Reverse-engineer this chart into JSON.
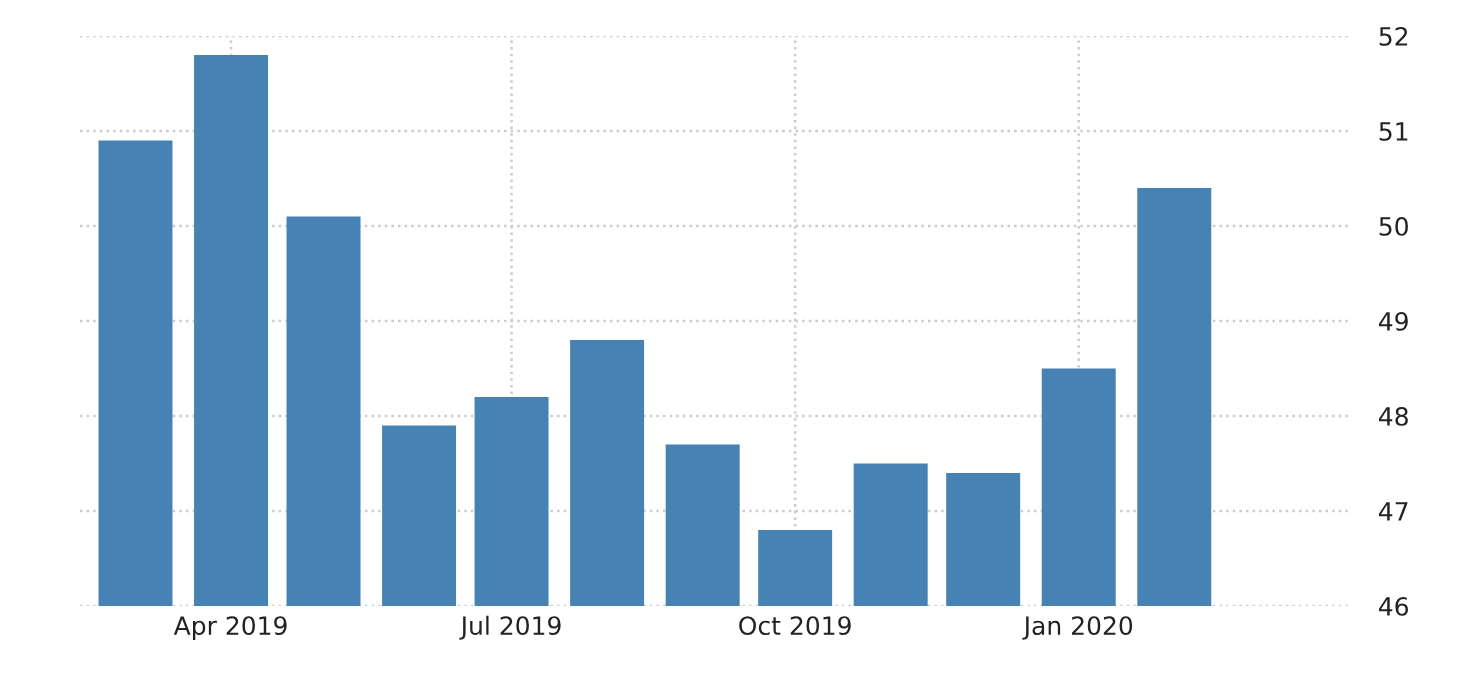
{
  "chart_data": {
    "type": "bar",
    "x": [
      "2019-03",
      "2019-04",
      "2019-05",
      "2019-06",
      "2019-07",
      "2019-08",
      "2019-09",
      "2019-10",
      "2019-11",
      "2019-12",
      "2020-01",
      "2020-02"
    ],
    "series": [
      {
        "color": "#4682b4",
        "values": [
          50.9,
          51.8,
          50.1,
          47.9,
          48.2,
          48.8,
          47.7,
          46.8,
          47.5,
          47.4,
          48.5,
          50.4
        ]
      }
    ],
    "xlim": [
      "2019-02-11",
      "2020-03-29"
    ],
    "xticks": [
      {
        "value": "2019-04",
        "label": "Apr 2019"
      },
      {
        "value": "2019-07",
        "label": "Jul 2019"
      },
      {
        "value": "2019-10",
        "label": "Oct 2019"
      },
      {
        "value": "2020-01",
        "label": "Jan 2020"
      }
    ],
    "ylim": [
      46,
      52
    ],
    "yticks": [
      46,
      47,
      48,
      49,
      50,
      51,
      52
    ],
    "grid": true
  }
}
